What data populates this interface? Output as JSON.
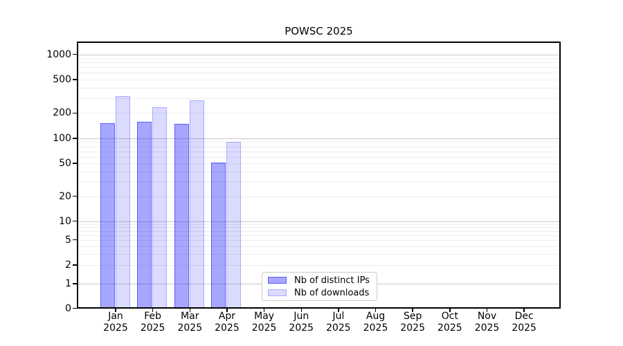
{
  "title": "POWSC 2025",
  "chart_data": {
    "type": "bar",
    "title": "POWSC 2025",
    "categories": [
      "Jan",
      "Feb",
      "Mar",
      "Apr",
      "May",
      "Jun",
      "Jul",
      "Aug",
      "Sep",
      "Oct",
      "Nov",
      "Dec"
    ],
    "year": "2025",
    "series": [
      {
        "name": "Nb of distinct IPs",
        "color": "#0000ff59",
        "edge_color": "#0000ff6e",
        "values": [
          152,
          158,
          148,
          51,
          0,
          0,
          0,
          0,
          0,
          0,
          0,
          0
        ]
      },
      {
        "name": "Nb of downloads",
        "color": "#0000ff24",
        "edge_color": "#0000ff38",
        "values": [
          318,
          236,
          282,
          90,
          0,
          0,
          0,
          0,
          0,
          0,
          0,
          0
        ]
      }
    ],
    "xlabel": "",
    "ylabel": "",
    "y_axis": {
      "scale": "symlog",
      "tick_labels": [
        "1000",
        "500",
        "200",
        "100",
        "50",
        "20",
        "10",
        "5",
        "2",
        "1",
        "0"
      ],
      "tick_values": [
        1000,
        500,
        200,
        100,
        50,
        20,
        10,
        5,
        2,
        1,
        0
      ],
      "ylim": [
        0,
        1370
      ]
    },
    "grid": true,
    "legend_position": "lower-center",
    "major_grid_color": "#c9c9c9",
    "minor_grid_color": "#ededed",
    "axis_color": "#000000"
  }
}
